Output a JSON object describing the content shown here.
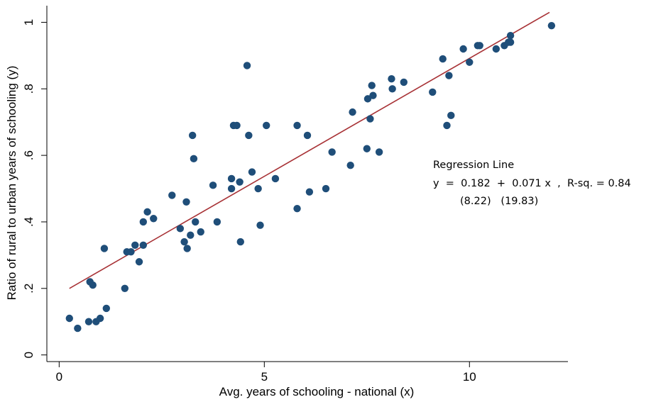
{
  "chart_data": {
    "type": "scatter",
    "xlabel": "Avg. years of schooling - national (x)",
    "ylabel": "Ratio of rural to urban years of schooling (y)",
    "xlim": [
      -0.3,
      12.4
    ],
    "ylim": [
      -0.02,
      1.05
    ],
    "xticks": [
      0,
      5,
      10
    ],
    "xtick_labels": [
      "0",
      "5",
      "10"
    ],
    "yticks": [
      0,
      0.2,
      0.4,
      0.6,
      0.8,
      1
    ],
    "ytick_labels": [
      "0",
      ".2",
      ".4",
      ".6",
      ".8",
      "1"
    ],
    "grid": false,
    "colors": {
      "points": "#1f4e79",
      "line": "#a83236",
      "axis": "#000000"
    },
    "points": [
      [
        0.25,
        0.11
      ],
      [
        0.45,
        0.08
      ],
      [
        0.72,
        0.1
      ],
      [
        0.75,
        0.22
      ],
      [
        0.82,
        0.21
      ],
      [
        0.9,
        0.1
      ],
      [
        1.0,
        0.11
      ],
      [
        1.1,
        0.32
      ],
      [
        1.15,
        0.14
      ],
      [
        1.6,
        0.2
      ],
      [
        1.65,
        0.31
      ],
      [
        1.75,
        0.31
      ],
      [
        1.85,
        0.33
      ],
      [
        1.95,
        0.28
      ],
      [
        2.05,
        0.4
      ],
      [
        2.05,
        0.33
      ],
      [
        2.15,
        0.43
      ],
      [
        2.3,
        0.41
      ],
      [
        2.75,
        0.48
      ],
      [
        2.95,
        0.38
      ],
      [
        3.05,
        0.34
      ],
      [
        3.1,
        0.46
      ],
      [
        3.12,
        0.32
      ],
      [
        3.2,
        0.36
      ],
      [
        3.25,
        0.66
      ],
      [
        3.28,
        0.59
      ],
      [
        3.32,
        0.4
      ],
      [
        3.45,
        0.37
      ],
      [
        3.75,
        0.51
      ],
      [
        3.85,
        0.4
      ],
      [
        4.2,
        0.53
      ],
      [
        4.2,
        0.5
      ],
      [
        4.25,
        0.69
      ],
      [
        4.33,
        0.69
      ],
      [
        4.4,
        0.52
      ],
      [
        4.42,
        0.34
      ],
      [
        4.58,
        0.87
      ],
      [
        4.62,
        0.66
      ],
      [
        4.7,
        0.55
      ],
      [
        4.85,
        0.5
      ],
      [
        4.9,
        0.39
      ],
      [
        5.05,
        0.69
      ],
      [
        5.27,
        0.53
      ],
      [
        5.8,
        0.69
      ],
      [
        5.8,
        0.44
      ],
      [
        6.05,
        0.66
      ],
      [
        6.1,
        0.49
      ],
      [
        6.5,
        0.5
      ],
      [
        6.65,
        0.61
      ],
      [
        7.1,
        0.57
      ],
      [
        7.15,
        0.73
      ],
      [
        7.5,
        0.62
      ],
      [
        7.52,
        0.77
      ],
      [
        7.58,
        0.71
      ],
      [
        7.62,
        0.81
      ],
      [
        7.65,
        0.78
      ],
      [
        7.8,
        0.61
      ],
      [
        8.1,
        0.83
      ],
      [
        8.12,
        0.8
      ],
      [
        8.4,
        0.82
      ],
      [
        9.1,
        0.79
      ],
      [
        9.35,
        0.89
      ],
      [
        9.45,
        0.69
      ],
      [
        9.5,
        0.84
      ],
      [
        9.55,
        0.72
      ],
      [
        9.85,
        0.92
      ],
      [
        10.0,
        0.88
      ],
      [
        10.2,
        0.93
      ],
      [
        10.25,
        0.93
      ],
      [
        10.65,
        0.92
      ],
      [
        10.85,
        0.93
      ],
      [
        10.95,
        0.94
      ],
      [
        11.0,
        0.94
      ],
      [
        11.0,
        0.96
      ],
      [
        12.0,
        0.99
      ]
    ],
    "regression": {
      "x": [
        0.25,
        11.95
      ],
      "y": [
        0.2,
        1.03
      ]
    },
    "annotation": {
      "title": "Regression Line",
      "equation": "y  =  0.182  +  0.071 x  ,  R-sq. = 0.84",
      "stats": "(8.22)   (19.83)"
    }
  }
}
